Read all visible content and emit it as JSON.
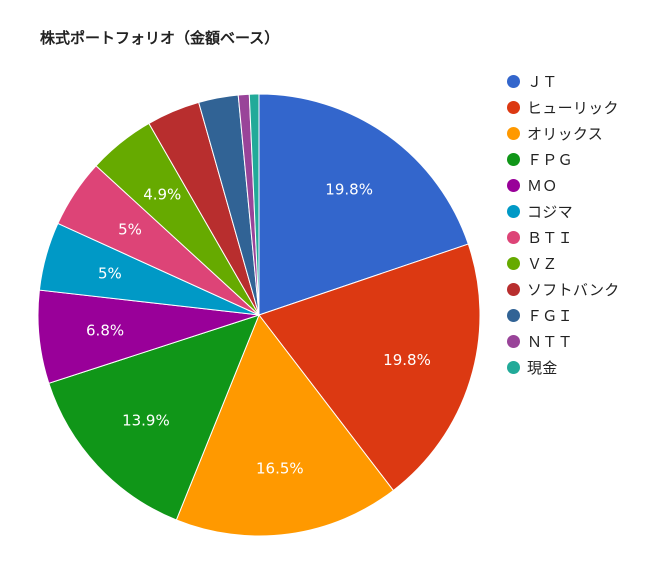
{
  "chart_data": {
    "type": "pie",
    "title": "株式ポートフォリオ（金額ベース）",
    "legend_position": "right",
    "slices": [
      {
        "label": "ＪＴ",
        "value": 19.8,
        "value_label": "19.8%",
        "color": "#3366cc"
      },
      {
        "label": "ヒューリック",
        "value": 19.8,
        "value_label": "19.8%",
        "color": "#dc3912"
      },
      {
        "label": "オリックス",
        "value": 16.5,
        "value_label": "16.5%",
        "color": "#ff9900"
      },
      {
        "label": "ＦＰＧ",
        "value": 13.9,
        "value_label": "13.9%",
        "color": "#109618"
      },
      {
        "label": "ＭＯ",
        "value": 6.8,
        "value_label": "6.8%",
        "color": "#990099"
      },
      {
        "label": "コジマ",
        "value": 5.0,
        "value_label": "5%",
        "color": "#0099c6"
      },
      {
        "label": "ＢＴＩ",
        "value": 5.0,
        "value_label": "5%",
        "color": "#dd4477"
      },
      {
        "label": "ＶＺ",
        "value": 4.9,
        "value_label": "4.9%",
        "color": "#66aa00"
      },
      {
        "label": "ソフトバンク",
        "value": 3.9,
        "value_label": "",
        "color": "#b82e2e"
      },
      {
        "label": "ＦＧＩ",
        "value": 2.9,
        "value_label": "",
        "color": "#316395"
      },
      {
        "label": "ＮＴＴ",
        "value": 0.8,
        "value_label": "",
        "color": "#994499"
      },
      {
        "label": "現金",
        "value": 0.7,
        "value_label": "",
        "color": "#22aa99"
      }
    ]
  }
}
